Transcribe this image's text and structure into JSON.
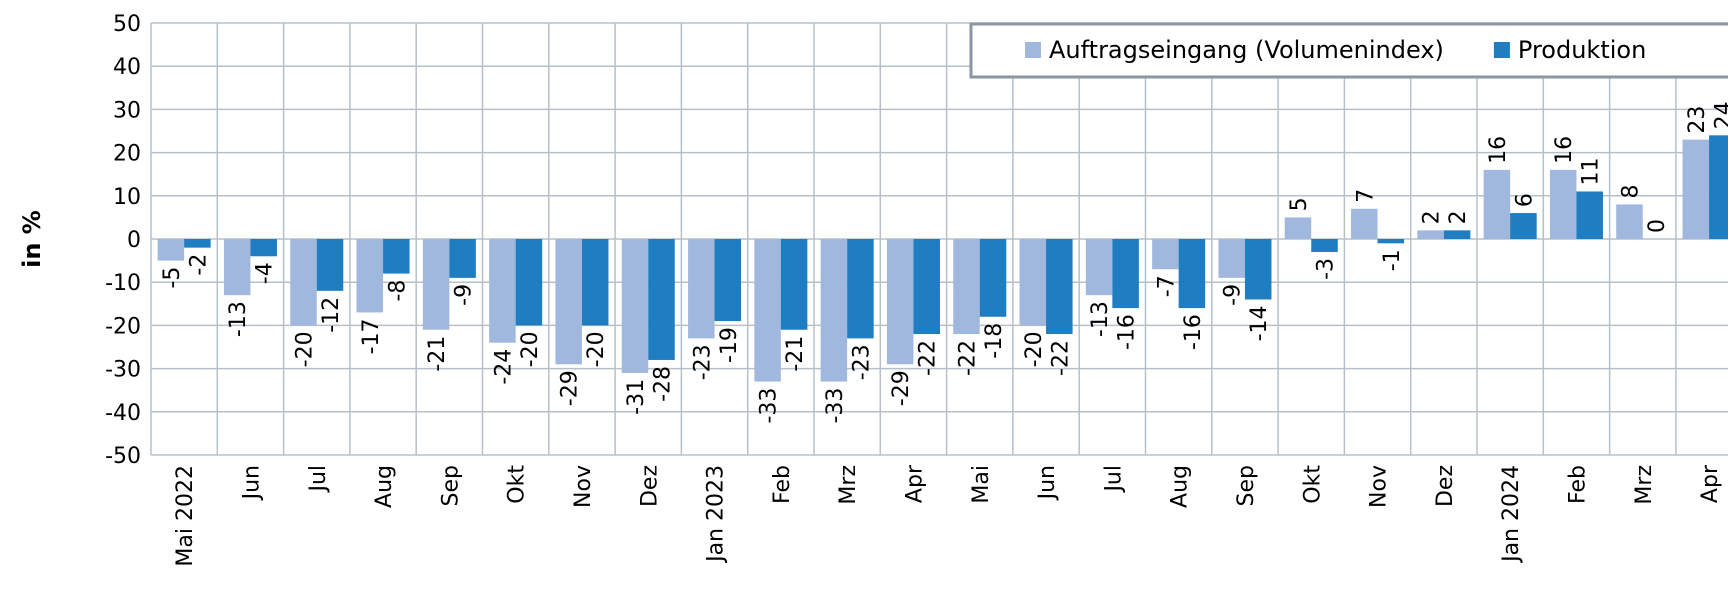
{
  "chart_data": {
    "type": "bar",
    "y_label": "in %",
    "categories": [
      "Mai 2022",
      "Jun",
      "Jul",
      "Aug",
      "Sep",
      "Okt",
      "Nov",
      "Dez",
      "Jan 2023",
      "Feb",
      "Mrz",
      "Apr",
      "Mai",
      "Jun",
      "Jul",
      "Aug",
      "Sep",
      "Okt",
      "Nov",
      "Dez",
      "Jan 2024",
      "Feb",
      "Mrz",
      "Apr"
    ],
    "series": [
      {
        "name": "Auftragseingang (Volumenindex)",
        "color": "#a1b8de",
        "values": [
          -5,
          -13,
          -20,
          -17,
          -21,
          -24,
          -29,
          -31,
          -23,
          -33,
          -33,
          -29,
          -22,
          -20,
          -13,
          -7,
          -9,
          5,
          7,
          2,
          16,
          16,
          8,
          23
        ]
      },
      {
        "name": "Produktion",
        "color": "#1f7dc1",
        "values": [
          -2,
          -4,
          -12,
          -8,
          -9,
          -20,
          -20,
          -28,
          -19,
          -21,
          -23,
          -22,
          -18,
          -22,
          -16,
          -16,
          -14,
          -3,
          -1,
          2,
          6,
          11,
          0,
          24
        ]
      }
    ],
    "ylim": [
      -50,
      50
    ],
    "yticks": [
      -50,
      -40,
      -30,
      -20,
      -10,
      0,
      10,
      20,
      30,
      40,
      50
    ],
    "grid": true,
    "legend": "top-right"
  }
}
